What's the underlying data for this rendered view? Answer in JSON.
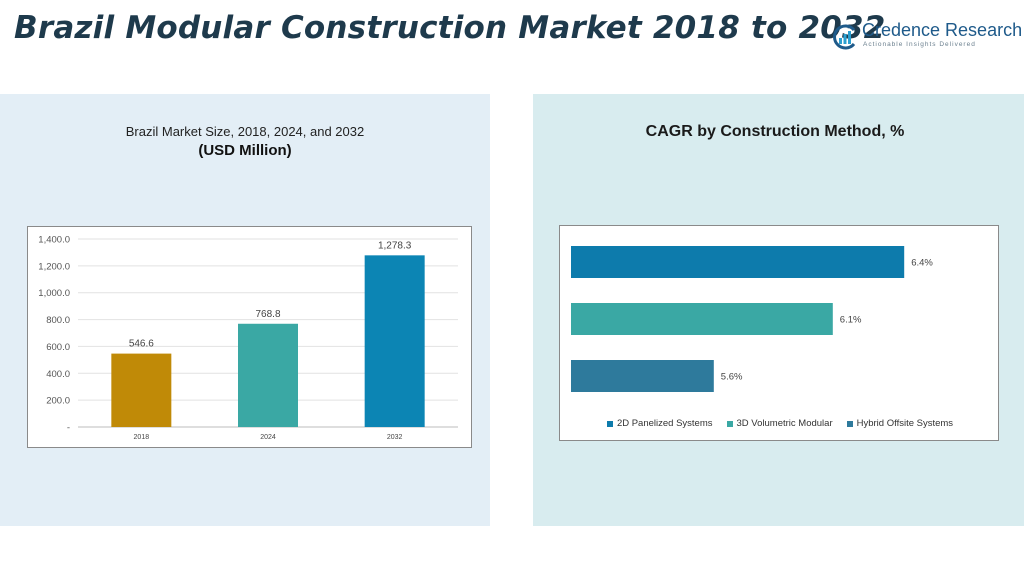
{
  "page": {
    "title": "Brazil Modular Construction Market 2018 to 2032"
  },
  "logo": {
    "name": "Credence Research",
    "tagline": "Actionable Insights Delivered"
  },
  "colors": {
    "title": "#1e3a4c",
    "bar_2018": "#c08a07",
    "bar_2024": "#3aa8a4",
    "bar_2032": "#0c85b4",
    "method_2d": "#0d7bac",
    "method_3d": "#3aa8a4",
    "method_hybrid": "#2e7a9c"
  },
  "chart_data": [
    {
      "type": "bar",
      "title": "Brazil Market Size, 2018, 2024, and 2032",
      "subtitle": "(USD Million)",
      "categories": [
        "2018",
        "2024",
        "2032"
      ],
      "values": [
        546.6,
        768.8,
        1278.3
      ],
      "value_labels": [
        "546.6",
        "768.8",
        "1,278.3"
      ],
      "ylim": [
        0,
        1400
      ],
      "yticks": [
        0,
        200,
        400,
        600,
        800,
        1000,
        1200,
        1400
      ],
      "ytick_labels": [
        "-",
        "200.0",
        "400.0",
        "600.0",
        "800.0",
        "1,000.0",
        "1,200.0",
        "1,400.0"
      ],
      "grid": true
    },
    {
      "type": "bar",
      "orientation": "horizontal",
      "title": "CAGR by Construction Method, %",
      "series": [
        {
          "name": "2D Panelized Systems",
          "values": [
            6.4
          ],
          "label": "6.4%",
          "color": "#0d7bac"
        },
        {
          "name": "3D Volumetric Modular",
          "values": [
            6.1
          ],
          "label": "6.1%",
          "color": "#3aa8a4"
        },
        {
          "name": "Hybrid Offsite Systems",
          "values": [
            5.6
          ],
          "label": "5.6%",
          "color": "#2e7a9c"
        }
      ],
      "xlim": [
        5.0,
        6.5
      ],
      "legend_position": "bottom"
    }
  ]
}
